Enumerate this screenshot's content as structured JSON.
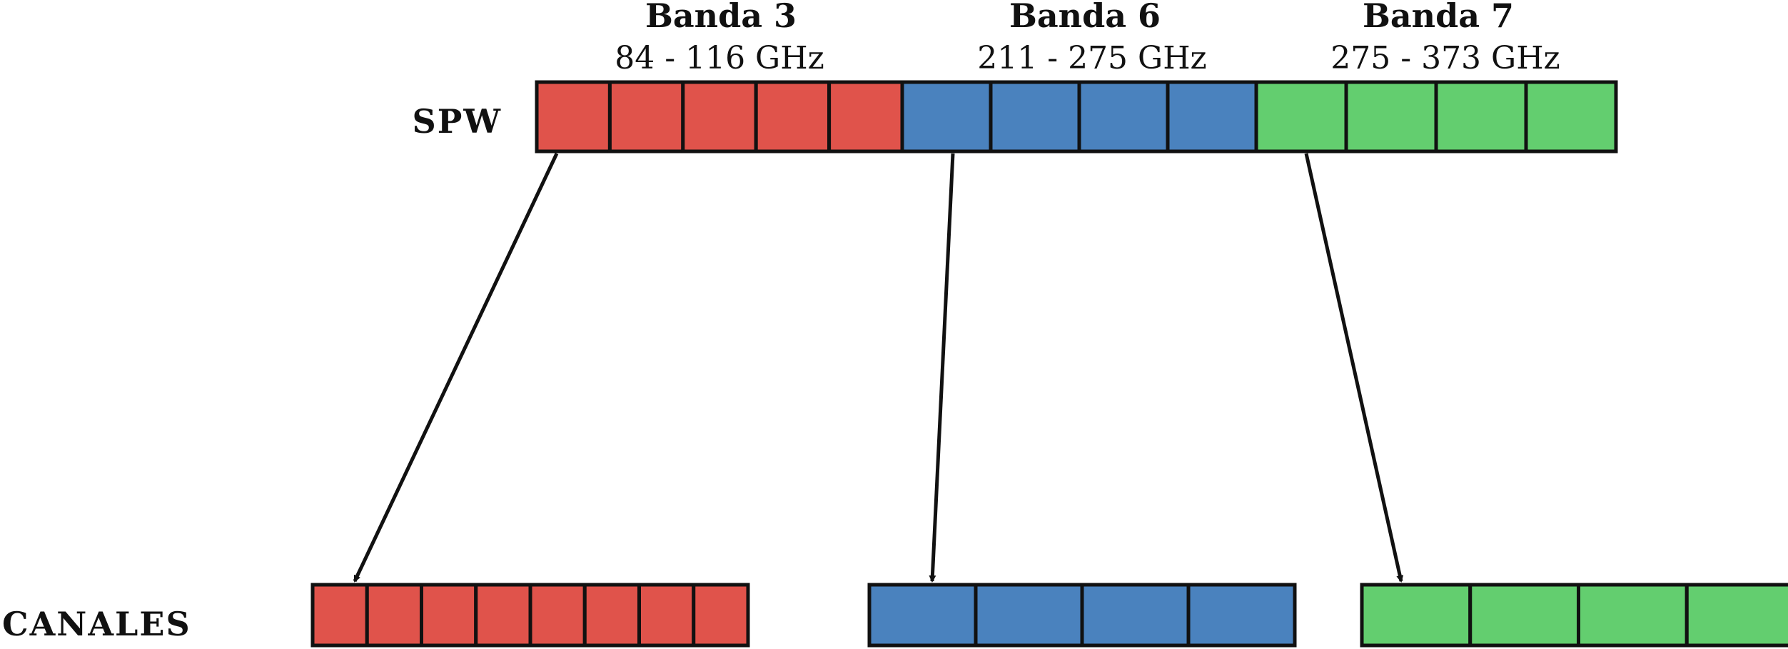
{
  "labels": {
    "spw": "SPW",
    "canales": "CANALES"
  },
  "bands": [
    {
      "name": "Banda 3",
      "range": "84 - 116 GHz",
      "color": "#E0534B",
      "spw_count": 5,
      "channel_count": 8
    },
    {
      "name": "Banda 6",
      "range": "211 - 275 GHz",
      "color": "#4A82BE",
      "spw_count": 4,
      "channel_count": 4
    },
    {
      "name": "Banda 7",
      "range": "275 - 373 GHz",
      "color": "#63CE6F",
      "spw_count": 4,
      "channel_count": 4
    }
  ]
}
